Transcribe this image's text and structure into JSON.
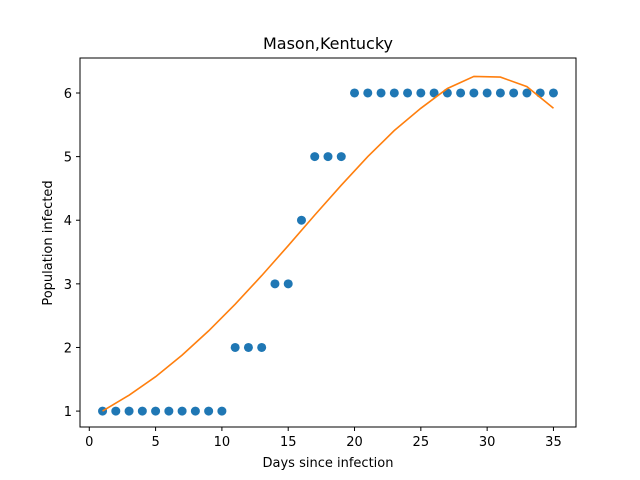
{
  "chart_data": {
    "type": "scatter",
    "title": "Mason,Kentucky",
    "xlabel": "Days since infection",
    "ylabel": "Population infected",
    "xlim": [
      -0.7,
      36.7
    ],
    "ylim": [
      0.75,
      6.55
    ],
    "xticks": [
      "0",
      "5",
      "10",
      "15",
      "20",
      "25",
      "30",
      "35"
    ],
    "yticks": [
      "1",
      "2",
      "3",
      "4",
      "5",
      "6"
    ],
    "grid": false,
    "legend": false,
    "colors": {
      "points": "#1f77b4",
      "fit": "#ff7f0e"
    },
    "series": [
      {
        "type": "scatter",
        "x": [
          1,
          2,
          3,
          4,
          5,
          6,
          7,
          8,
          9,
          10,
          11,
          12,
          13,
          14,
          15,
          16,
          17,
          18,
          19,
          20,
          21,
          22,
          23,
          24,
          25,
          26,
          27,
          28,
          29,
          30,
          31,
          32,
          33,
          34,
          35
        ],
        "y": [
          1,
          1,
          1,
          1,
          1,
          1,
          1,
          1,
          1,
          1,
          2,
          2,
          2,
          3,
          3,
          4,
          5,
          5,
          5,
          6,
          6,
          6,
          6,
          6,
          6,
          6,
          6,
          6,
          6,
          6,
          6,
          6,
          6,
          6,
          6
        ]
      },
      {
        "type": "line",
        "x": [
          1,
          3,
          5,
          7,
          9,
          11,
          13,
          15,
          17,
          19,
          21,
          23,
          25,
          27,
          29,
          31,
          33,
          35
        ],
        "y": [
          1.0,
          1.25,
          1.54,
          1.88,
          2.26,
          2.68,
          3.13,
          3.6,
          4.08,
          4.55,
          5.0,
          5.41,
          5.76,
          6.07,
          6.26,
          6.25,
          6.1,
          5.76
        ]
      }
    ]
  }
}
